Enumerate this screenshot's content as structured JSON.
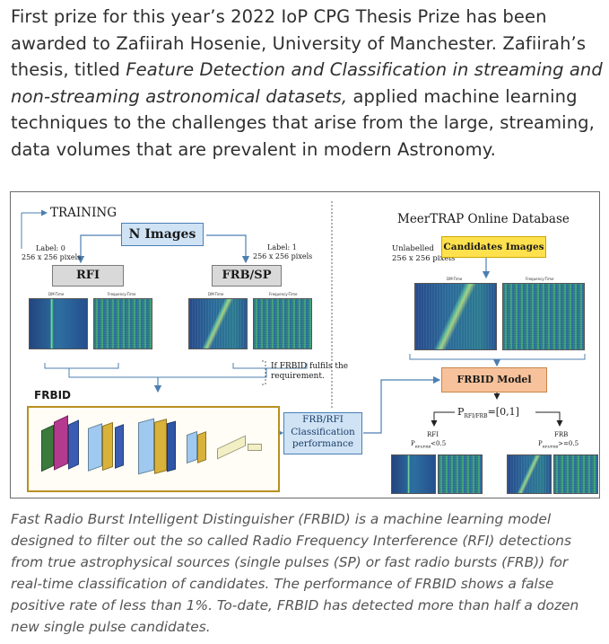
{
  "intro": {
    "part1": "First prize for this year’s 2022 IoP CPG Thesis Prize has been awarded to Zafiirah Hosenie, University of Manchester. Zafiirah’s thesis, titled ",
    "thesis_title": "Feature Detection and Classification in streaming and non-streaming astronomical datasets,",
    "part2": " applied machine learning techniques to the challenges that arise from the large, streaming, data volumes that are prevalent in modern Astronomy."
  },
  "figure": {
    "training": "TRAINING",
    "n_images": "N Images",
    "label0_line1": "Label: 0",
    "label0_line2": "256 x 256 pixels",
    "label1_line1": "Label: 1",
    "label1_line2": "256 x 256 pixels",
    "rfi_box": "RFI",
    "frbsp_box": "FRB/SP",
    "dm_time": "DM-Time",
    "freq_time": "Frequency-Time",
    "frbid_label": "FRBID",
    "fulfils_line1": "If FRBID fulfils the",
    "fulfils_line2": "requirement.",
    "classification_line1": "FRB/RFI",
    "classification_line2": "Classification",
    "classification_line3": "performance",
    "db_title": "MeerTRAP Online Database",
    "unlabelled_line1": "Unlabelled",
    "unlabelled_line2": "256 x 256 pixels",
    "candidates_box": "Candidates Images",
    "model_box": "FRBID Model",
    "prob_range": "P",
    "prob_sub": "RFI/FRB",
    "prob_val": "=[0,1]",
    "out_rfi": "RFI",
    "out_rfi_p": "P",
    "out_rfi_sub": "RFI/FRB",
    "out_rfi_cond": "<0.5",
    "out_frb": "FRB",
    "out_frb_p": "P",
    "out_frb_sub": "RFI/FRB",
    "out_frb_cond": ">=0.5"
  },
  "caption": "Fast Radio Burst Intelligent Distinguisher (FRBID) is a machine learning model designed to filter out the so called Radio Frequency Interference (RFI) detections from true astrophysical sources (single pulses (SP) or fast radio bursts (FRB)) for real-time classification of candidates. The performance of FRBID shows a false positive rate of less than 1%. To-date, FRBID has detected more than half a dozen new single pulse candidates.",
  "colors": {
    "blue_box": "#cfe3f5",
    "yellow_box": "#ffe14d",
    "orange_box": "#f7c29b",
    "grey_box": "#d9d9d9",
    "cnn_border": "#b89020"
  }
}
